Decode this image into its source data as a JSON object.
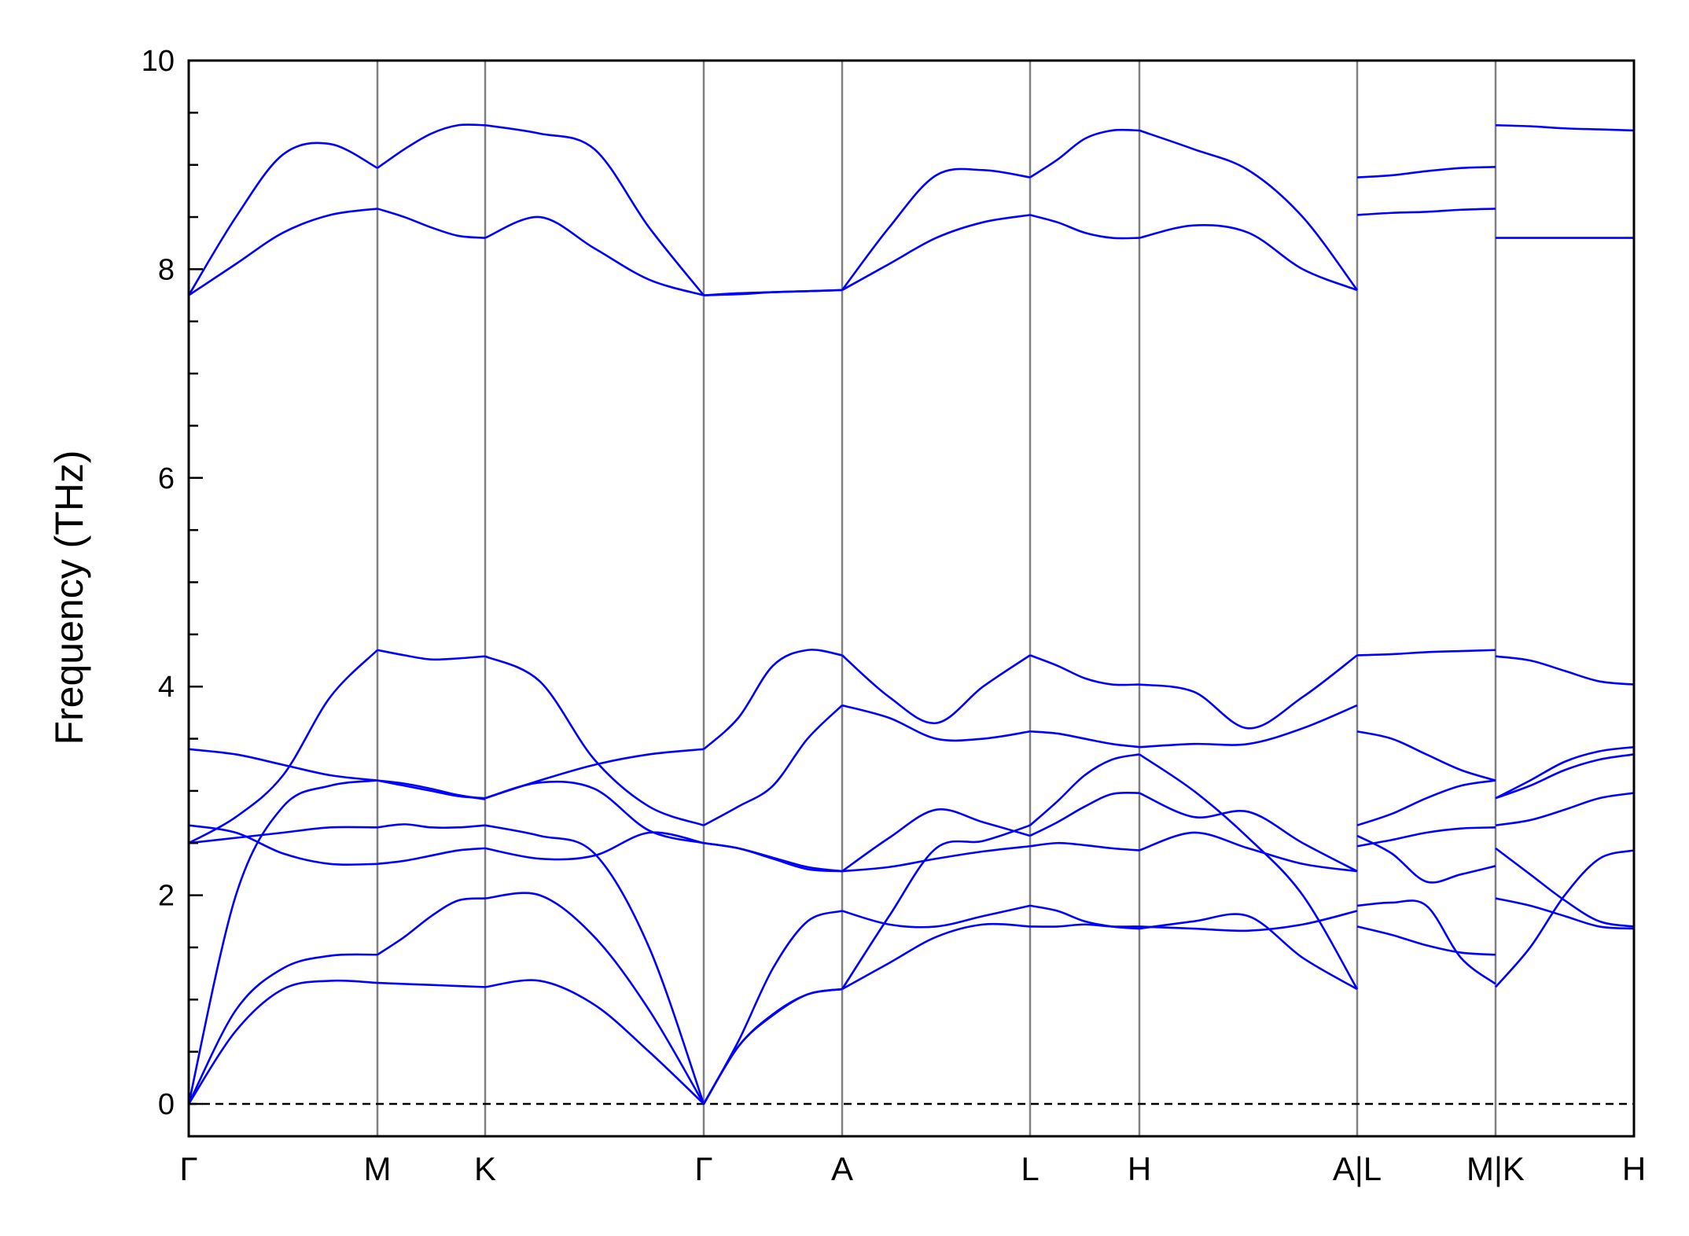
{
  "chart_data": {
    "type": "line",
    "title": "",
    "xlabel": "",
    "ylabel": "Frequency (THz)",
    "ylim": [
      -0.31,
      10
    ],
    "yticks": [
      "0",
      "2",
      "4",
      "6",
      "8",
      "10"
    ],
    "minor_tick_step": 0.5,
    "xtick_labels": [
      "Γ",
      "M",
      "K",
      "Γ",
      "A",
      "L",
      "H",
      "A|L",
      "M|K",
      "H"
    ],
    "zero_line": true,
    "grid": false,
    "colors": {
      "bands": "#0000ff",
      "kpoint_lines": "#808080",
      "axes": "#000000"
    },
    "sample_fractions": [
      0,
      0.25,
      0.5,
      0.75,
      1
    ],
    "segments": [
      {
        "from": "Γ",
        "to": "M",
        "bands": [
          [
            7.75,
            8.5,
            9.1,
            9.2,
            8.97
          ],
          [
            7.75,
            8.05,
            8.35,
            8.52,
            8.58
          ],
          [
            2.5,
            2.75,
            3.15,
            3.9,
            4.35
          ],
          [
            3.4,
            3.35,
            3.25,
            3.15,
            3.1
          ],
          [
            0,
            2.0,
            2.85,
            3.05,
            3.1
          ],
          [
            2.67,
            2.6,
            2.4,
            2.3,
            2.3
          ],
          [
            2.5,
            2.55,
            2.6,
            2.65,
            2.65
          ],
          [
            0,
            0.9,
            1.3,
            1.42,
            1.43
          ],
          [
            0,
            0.7,
            1.1,
            1.18,
            1.16
          ]
        ]
      },
      {
        "from": "M",
        "to": "K",
        "bands": [
          [
            8.97,
            9.15,
            9.3,
            9.38,
            9.38
          ],
          [
            8.58,
            8.5,
            8.4,
            8.32,
            8.3
          ],
          [
            4.35,
            4.3,
            4.26,
            4.27,
            4.29
          ],
          [
            3.1,
            3.07,
            3.02,
            2.96,
            2.92
          ],
          [
            3.1,
            3.05,
            3.0,
            2.95,
            2.93
          ],
          [
            2.65,
            2.68,
            2.65,
            2.65,
            2.67
          ],
          [
            2.3,
            2.33,
            2.38,
            2.43,
            2.45
          ],
          [
            1.43,
            1.6,
            1.8,
            1.95,
            1.97
          ],
          [
            1.16,
            1.15,
            1.14,
            1.13,
            1.12
          ]
        ]
      },
      {
        "from": "K",
        "to": "Γ",
        "bands": [
          [
            9.38,
            9.3,
            9.15,
            8.4,
            7.75
          ],
          [
            8.3,
            8.5,
            8.2,
            7.9,
            7.75
          ],
          [
            4.29,
            4.05,
            3.3,
            2.85,
            2.67
          ],
          [
            2.93,
            3.1,
            3.25,
            3.35,
            3.4
          ],
          [
            2.93,
            3.08,
            3.02,
            2.62,
            2.5
          ],
          [
            2.67,
            2.57,
            2.4,
            1.5,
            0
          ],
          [
            2.45,
            2.35,
            2.38,
            2.6,
            2.5
          ],
          [
            1.97,
            2.0,
            1.6,
            0.9,
            0
          ],
          [
            1.12,
            1.18,
            0.95,
            0.5,
            0
          ]
        ]
      },
      {
        "from": "Γ",
        "to": "A",
        "bands": [
          [
            7.75,
            7.77,
            7.78,
            7.79,
            7.8
          ],
          [
            7.75,
            7.76,
            7.78,
            7.79,
            7.8
          ],
          [
            3.4,
            3.7,
            4.2,
            4.35,
            4.3
          ],
          [
            2.67,
            2.85,
            3.05,
            3.5,
            3.82
          ],
          [
            2.5,
            2.45,
            2.35,
            2.25,
            2.23
          ],
          [
            2.5,
            2.45,
            2.36,
            2.27,
            2.23
          ],
          [
            0,
            0.6,
            1.3,
            1.75,
            1.85
          ],
          [
            0,
            0.55,
            0.85,
            1.05,
            1.1
          ],
          [
            0,
            0.55,
            0.86,
            1.05,
            1.1
          ]
        ]
      },
      {
        "from": "A",
        "to": "L",
        "bands": [
          [
            7.8,
            8.4,
            8.9,
            8.95,
            8.88
          ],
          [
            7.8,
            8.05,
            8.3,
            8.45,
            8.52
          ],
          [
            4.3,
            3.9,
            3.65,
            4.0,
            4.3
          ],
          [
            3.82,
            3.7,
            3.5,
            3.5,
            3.57
          ],
          [
            2.23,
            2.55,
            2.82,
            2.7,
            2.57
          ],
          [
            1.1,
            1.8,
            2.45,
            2.52,
            2.67
          ],
          [
            2.23,
            2.27,
            2.35,
            2.42,
            2.47
          ],
          [
            1.85,
            1.72,
            1.7,
            1.8,
            1.9
          ],
          [
            1.1,
            1.35,
            1.6,
            1.72,
            1.7
          ]
        ]
      },
      {
        "from": "L",
        "to": "H",
        "bands": [
          [
            8.88,
            9.05,
            9.25,
            9.33,
            9.33
          ],
          [
            8.52,
            8.45,
            8.35,
            8.3,
            8.3
          ],
          [
            4.3,
            4.2,
            4.08,
            4.02,
            4.02
          ],
          [
            3.57,
            3.55,
            3.5,
            3.45,
            3.42
          ],
          [
            2.67,
            2.9,
            3.15,
            3.3,
            3.35
          ],
          [
            2.57,
            2.7,
            2.85,
            2.97,
            2.98
          ],
          [
            2.47,
            2.5,
            2.48,
            2.45,
            2.43
          ],
          [
            1.9,
            1.85,
            1.75,
            1.7,
            1.68
          ],
          [
            1.7,
            1.7,
            1.72,
            1.7,
            1.7
          ]
        ]
      },
      {
        "from": "H",
        "to": "A",
        "bands": [
          [
            9.33,
            9.15,
            8.95,
            8.5,
            7.8
          ],
          [
            8.3,
            8.42,
            8.35,
            8.0,
            7.8
          ],
          [
            4.02,
            3.95,
            3.6,
            3.9,
            4.3
          ],
          [
            3.42,
            3.45,
            3.45,
            3.6,
            3.82
          ],
          [
            3.35,
            3.0,
            2.55,
            2.0,
            1.1
          ],
          [
            2.98,
            2.75,
            2.8,
            2.5,
            2.23
          ],
          [
            2.43,
            2.6,
            2.45,
            2.3,
            2.23
          ],
          [
            1.68,
            1.75,
            1.8,
            1.4,
            1.1
          ],
          [
            1.7,
            1.68,
            1.66,
            1.72,
            1.85
          ]
        ]
      },
      {
        "from": "L",
        "to": "M",
        "bands": [
          [
            8.88,
            8.9,
            8.94,
            8.97,
            8.98
          ],
          [
            8.52,
            8.54,
            8.55,
            8.57,
            8.58
          ],
          [
            4.3,
            4.31,
            4.33,
            4.34,
            4.35
          ],
          [
            3.57,
            3.5,
            3.35,
            3.2,
            3.1
          ],
          [
            2.67,
            2.78,
            2.93,
            3.05,
            3.1
          ],
          [
            2.57,
            2.4,
            2.13,
            2.2,
            2.28
          ],
          [
            2.47,
            2.53,
            2.6,
            2.64,
            2.65
          ],
          [
            1.9,
            1.93,
            1.9,
            1.4,
            1.15
          ],
          [
            1.7,
            1.62,
            1.52,
            1.45,
            1.43
          ]
        ]
      },
      {
        "from": "K",
        "to": "H",
        "bands": [
          [
            9.38,
            9.37,
            9.35,
            9.34,
            9.33
          ],
          [
            8.3,
            8.3,
            8.3,
            8.3,
            8.3
          ],
          [
            4.29,
            4.25,
            4.15,
            4.05,
            4.02
          ],
          [
            2.93,
            3.1,
            3.28,
            3.38,
            3.42
          ],
          [
            2.93,
            3.05,
            3.2,
            3.3,
            3.35
          ],
          [
            2.67,
            2.72,
            2.82,
            2.93,
            2.98
          ],
          [
            2.45,
            2.2,
            1.95,
            1.75,
            1.7
          ],
          [
            1.97,
            1.9,
            1.8,
            1.7,
            1.68
          ],
          [
            1.12,
            1.5,
            2.0,
            2.35,
            2.43
          ]
        ]
      }
    ]
  }
}
